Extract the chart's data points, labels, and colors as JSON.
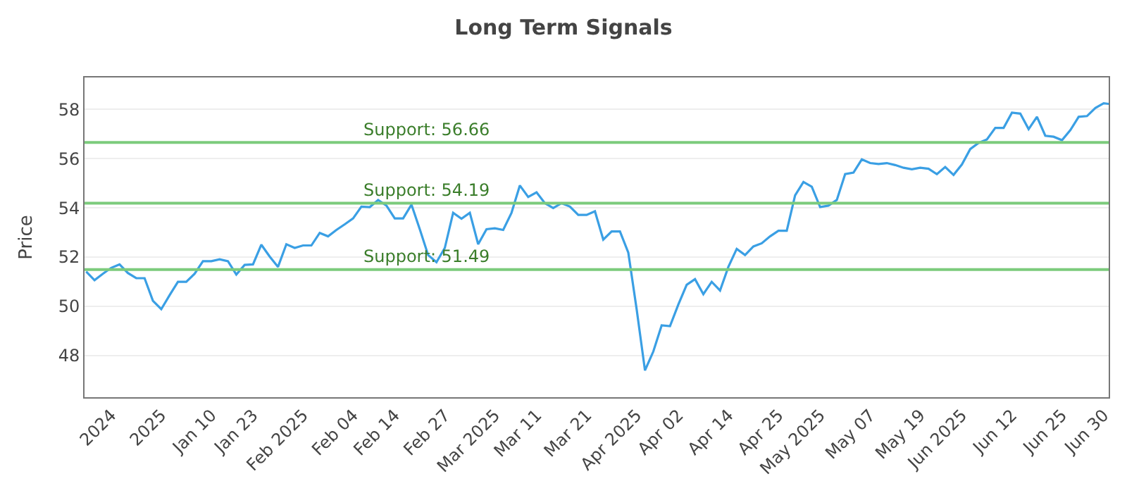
{
  "chart_data": {
    "type": "line",
    "title": "Long Term Signals",
    "ylabel": "Price",
    "categories": [
      null,
      null,
      null,
      "2024",
      null,
      null,
      null,
      null,
      null,
      "2025",
      null,
      null,
      null,
      null,
      null,
      "Jan 10",
      null,
      null,
      null,
      null,
      "Jan 23",
      null,
      null,
      null,
      null,
      null,
      "Feb 2025",
      null,
      null,
      null,
      null,
      null,
      "Feb 04",
      null,
      null,
      null,
      null,
      "Feb 14",
      null,
      null,
      null,
      null,
      null,
      "Feb 27",
      null,
      null,
      null,
      null,
      null,
      "Mar 2025",
      null,
      null,
      null,
      null,
      "Mar 11",
      null,
      null,
      null,
      null,
      null,
      "Mar 21",
      null,
      null,
      null,
      null,
      null,
      "Apr 2025",
      null,
      null,
      null,
      null,
      "Apr 02",
      null,
      null,
      null,
      null,
      null,
      "Apr 14",
      null,
      null,
      null,
      null,
      null,
      "Apr 25",
      null,
      null,
      null,
      null,
      "May 2025",
      null,
      null,
      null,
      null,
      null,
      "May 07",
      null,
      null,
      null,
      null,
      null,
      "May 19",
      null,
      null,
      null,
      null,
      "Jun 2025",
      null,
      null,
      null,
      null,
      null,
      "Jun 12",
      null,
      null,
      null,
      null,
      null,
      "Jun 25",
      null,
      null,
      null,
      null,
      "Jun 30",
      null
    ],
    "series": [
      {
        "color": "#3a9fe4",
        "values": [
          51.41,
          51.06,
          51.32,
          51.56,
          51.7,
          51.35,
          51.14,
          51.14,
          50.22,
          49.88,
          50.45,
          50.99,
          50.99,
          51.32,
          51.83,
          51.83,
          51.91,
          51.83,
          51.29,
          51.68,
          51.7,
          52.5,
          52.02,
          51.6,
          52.52,
          52.37,
          52.47,
          52.47,
          52.98,
          52.84,
          53.1,
          53.33,
          53.57,
          54.05,
          54.03,
          54.32,
          54.09,
          53.57,
          53.57,
          54.13,
          53.13,
          52.08,
          51.79,
          52.37,
          53.8,
          53.56,
          53.8,
          52.52,
          53.13,
          53.17,
          53.1,
          53.8,
          54.91,
          54.44,
          54.63,
          54.19,
          53.99,
          54.19,
          54.05,
          53.71,
          53.71,
          53.86,
          52.71,
          53.04,
          53.04,
          52.18,
          49.88,
          47.39,
          48.16,
          49.22,
          49.19,
          50.07,
          50.87,
          51.1,
          50.49,
          50.99,
          50.64,
          51.6,
          52.33,
          52.08,
          52.43,
          52.56,
          52.84,
          53.07,
          53.07,
          54.51,
          55.05,
          54.86,
          54.03,
          54.09,
          54.32,
          55.37,
          55.43,
          55.97,
          55.82,
          55.78,
          55.82,
          55.74,
          55.63,
          55.57,
          55.63,
          55.59,
          55.37,
          55.66,
          55.34,
          55.76,
          56.39,
          56.64,
          56.78,
          57.25,
          57.25,
          57.87,
          57.83,
          57.2,
          57.7,
          56.93,
          56.89,
          56.75,
          57.16,
          57.7,
          57.73,
          58.06,
          58.25,
          58.21
        ]
      }
    ],
    "ylim": [
      46.3,
      59.3
    ],
    "yticks": [
      48,
      50,
      52,
      54,
      56,
      58
    ],
    "grid": "y",
    "marker": "none",
    "line_style": "solid",
    "ref_lines": [
      {
        "axis": "y",
        "value": 56.66,
        "label": "Support: 56.66",
        "color": "#7ccb7c"
      },
      {
        "axis": "y",
        "value": 54.19,
        "label": "Support: 54.19",
        "color": "#7ccb7c"
      },
      {
        "axis": "y",
        "value": 51.49,
        "label": "Support: 51.49",
        "color": "#7ccb7c"
      }
    ]
  }
}
